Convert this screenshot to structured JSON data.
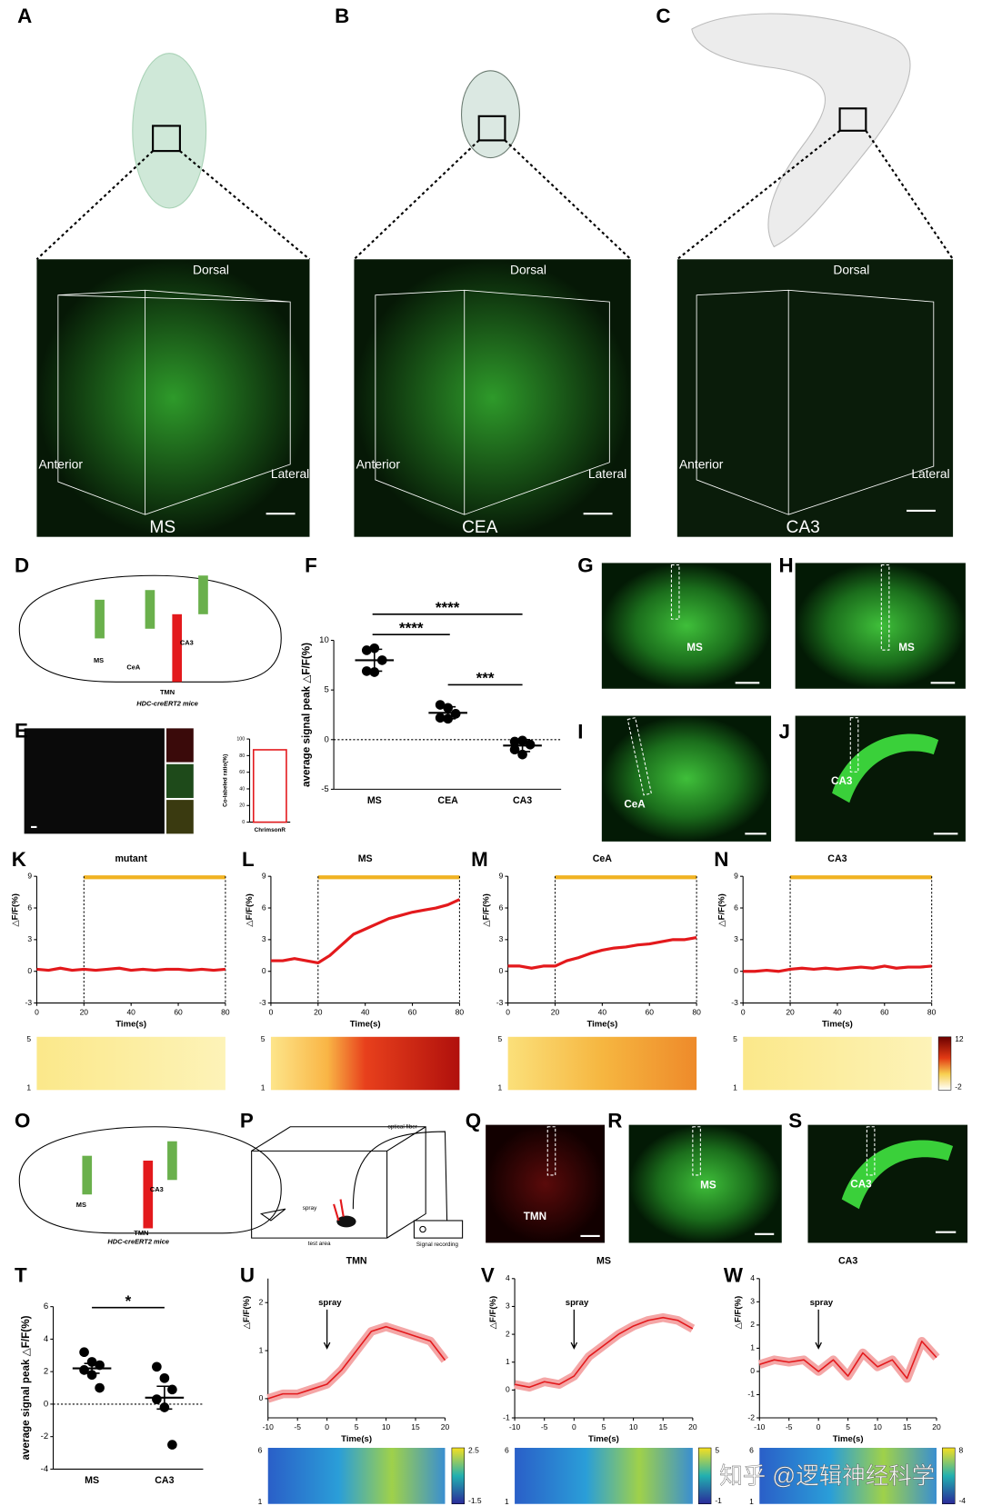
{
  "figure": {
    "panel_letters": [
      "A",
      "B",
      "C",
      "D",
      "E",
      "F",
      "G",
      "H",
      "I",
      "J",
      "K",
      "L",
      "M",
      "N",
      "O",
      "P",
      "Q",
      "R",
      "S",
      "T",
      "U",
      "V",
      "W"
    ],
    "cubes": [
      {
        "dorsal": "Dorsal",
        "anterior": "Anterior",
        "lateral": "Lateral",
        "region": "MS"
      },
      {
        "dorsal": "Dorsal",
        "anterior": "Anterior",
        "lateral": "Lateral",
        "region": "CEA"
      },
      {
        "dorsal": "Dorsal",
        "anterior": "Anterior",
        "lateral": "Lateral",
        "region": "CA3"
      }
    ],
    "d_labels": [
      "MS",
      "CeA",
      "CA3",
      "TMN",
      "HDC-creERT2 mice"
    ],
    "o_labels": [
      "MS",
      "CA3",
      "TMN",
      "HDC-creERT2 mice"
    ],
    "p_labels": [
      "optical fiber",
      "spray",
      "test area",
      "Signal recording"
    ],
    "image_labels": [
      "MS",
      "MS",
      "CeA",
      "CA3",
      "TMN",
      "MS",
      "CA3"
    ],
    "watermark": "知乎 @逻辑神经科学"
  },
  "chart_data": [
    {
      "type": "bar",
      "categories": [
        "ChrimsonR"
      ],
      "values": [
        87
      ],
      "color": "#e3191c",
      "ylim": [
        0,
        100
      ],
      "yticks": [
        0,
        20,
        40,
        60,
        80,
        100
      ],
      "ylabel": "Co-labeled ratio(%)"
    },
    {
      "type": "strip",
      "categories": [
        "MS",
        "CEA",
        "CA3"
      ],
      "points": [
        [
          9,
          9.2,
          8,
          6.9,
          6.8
        ],
        [
          3.5,
          3.2,
          2.6,
          2.2,
          2.1
        ],
        [
          -0.2,
          -0.1,
          -0.5,
          -1,
          -1.5
        ]
      ],
      "means": [
        8,
        2.7,
        -0.6
      ],
      "errors": [
        1.1,
        0.6,
        0.6
      ],
      "ylim": [
        -5,
        10
      ],
      "yticks": [
        -5,
        0,
        5,
        10
      ],
      "ylabel": "average signal peak △F/F(%)",
      "annotations": [
        "****",
        "****",
        "***"
      ]
    },
    {
      "type": "line",
      "title": "mutant",
      "x": [
        0,
        5,
        10,
        15,
        20,
        25,
        30,
        35,
        40,
        45,
        50,
        55,
        60,
        65,
        70,
        75,
        80
      ],
      "values": [
        0.2,
        0.1,
        0.3,
        0.1,
        0.2,
        0.1,
        0.2,
        0.3,
        0.1,
        0.2,
        0.1,
        0.2,
        0.2,
        0.1,
        0.2,
        0.1,
        0.2
      ],
      "color": "#e3191c",
      "stimulus": [
        20,
        80
      ],
      "xlim": [
        0,
        80
      ],
      "xticks": [
        0,
        20,
        40,
        60,
        80
      ],
      "ylim": [
        -3,
        9
      ],
      "yticks": [
        -3,
        0,
        3,
        6,
        9
      ],
      "xlabel": "Time(s)",
      "ylabel": "△F/F(%)",
      "heatmap_rows": [
        5,
        1
      ]
    },
    {
      "type": "line",
      "title": "MS",
      "x": [
        0,
        5,
        10,
        15,
        20,
        25,
        30,
        35,
        40,
        45,
        50,
        55,
        60,
        65,
        70,
        75,
        80
      ],
      "values": [
        1,
        1,
        1.2,
        1,
        0.8,
        1.5,
        2.5,
        3.5,
        4,
        4.5,
        5,
        5.3,
        5.6,
        5.8,
        6,
        6.3,
        6.8
      ],
      "color": "#e3191c",
      "stimulus": [
        20,
        80
      ],
      "xlim": [
        0,
        80
      ],
      "xticks": [
        0,
        20,
        40,
        60,
        80
      ],
      "ylim": [
        -3,
        9
      ],
      "yticks": [
        -3,
        0,
        3,
        6,
        9
      ],
      "xlabel": "Time(s)",
      "ylabel": "△F/F(%)",
      "heatmap_rows": [
        5,
        1
      ]
    },
    {
      "type": "line",
      "title": "CeA",
      "x": [
        0,
        5,
        10,
        15,
        20,
        25,
        30,
        35,
        40,
        45,
        50,
        55,
        60,
        65,
        70,
        75,
        80
      ],
      "values": [
        0.5,
        0.5,
        0.3,
        0.5,
        0.5,
        1,
        1.3,
        1.7,
        2,
        2.2,
        2.3,
        2.5,
        2.6,
        2.8,
        3,
        3,
        3.2
      ],
      "color": "#e3191c",
      "stimulus": [
        20,
        80
      ],
      "xlim": [
        0,
        80
      ],
      "xticks": [
        0,
        20,
        40,
        60,
        80
      ],
      "ylim": [
        -3,
        9
      ],
      "yticks": [
        -3,
        0,
        3,
        6,
        9
      ],
      "xlabel": "Time(s)",
      "ylabel": "△F/F(%)",
      "heatmap_rows": [
        5,
        1
      ]
    },
    {
      "type": "line",
      "title": "CA3",
      "x": [
        0,
        5,
        10,
        15,
        20,
        25,
        30,
        35,
        40,
        45,
        50,
        55,
        60,
        65,
        70,
        75,
        80
      ],
      "values": [
        0,
        0,
        0.1,
        0,
        0.2,
        0.3,
        0.2,
        0.3,
        0.2,
        0.3,
        0.4,
        0.3,
        0.5,
        0.3,
        0.4,
        0.4,
        0.5
      ],
      "color": "#e3191c",
      "stimulus": [
        20,
        80
      ],
      "xlim": [
        0,
        80
      ],
      "xticks": [
        0,
        20,
        40,
        60,
        80
      ],
      "ylim": [
        -3,
        9
      ],
      "yticks": [
        -3,
        0,
        3,
        6,
        9
      ],
      "xlabel": "Time(s)",
      "ylabel": "△F/F(%)",
      "heatmap_rows": [
        5,
        1
      ],
      "colorbar": [
        12,
        -2
      ]
    },
    {
      "type": "strip",
      "categories": [
        "MS",
        "CA3"
      ],
      "points": [
        [
          3.2,
          2.6,
          2.4,
          2.1,
          1.8,
          1
        ],
        [
          2.3,
          1.6,
          0.9,
          0.3,
          -0.2,
          -2.5
        ]
      ],
      "means": [
        2.2,
        0.4
      ],
      "errors": [
        0.3,
        0.7
      ],
      "ylim": [
        -4,
        6
      ],
      "yticks": [
        -4,
        -2,
        0,
        2,
        4,
        6
      ],
      "ylabel": "average signal peak △F/F(%)",
      "annotations": [
        "*"
      ]
    },
    {
      "type": "line",
      "title": "TMN",
      "annotation": "spray",
      "x": [
        -10,
        -7.5,
        -5,
        -2.5,
        0,
        2.5,
        5,
        7.5,
        10,
        12.5,
        15,
        17.5,
        20
      ],
      "values": [
        0,
        0.1,
        0.1,
        0.2,
        0.3,
        0.6,
        1,
        1.4,
        1.5,
        1.4,
        1.3,
        1.2,
        0.8
      ],
      "color": "#e3191c",
      "xlim": [
        -10,
        20
      ],
      "xticks": [
        -10,
        -5,
        0,
        5,
        10,
        15,
        20
      ],
      "ylim": [
        -0.4,
        2.5
      ],
      "yticks": [
        0,
        1,
        2
      ],
      "xlabel": "Time(s)",
      "ylabel": "△F/F(%)",
      "heatmap_rows": [
        6,
        1
      ],
      "colorbar": [
        2.5,
        -1.5
      ]
    },
    {
      "type": "line",
      "title": "MS",
      "annotation": "spray",
      "x": [
        -10,
        -7.5,
        -5,
        -2.5,
        0,
        2.5,
        5,
        7.5,
        10,
        12.5,
        15,
        17.5,
        20
      ],
      "values": [
        0.2,
        0.1,
        0.3,
        0.2,
        0.5,
        1.2,
        1.6,
        2,
        2.3,
        2.5,
        2.6,
        2.5,
        2.2
      ],
      "color": "#e3191c",
      "xlim": [
        -10,
        20
      ],
      "xticks": [
        -10,
        -5,
        0,
        5,
        10,
        15,
        20
      ],
      "ylim": [
        -1,
        4
      ],
      "yticks": [
        -1,
        0,
        1,
        2,
        3,
        4
      ],
      "xlabel": "Time(s)",
      "ylabel": "△F/F(%)",
      "heatmap_rows": [
        6,
        1
      ],
      "colorbar": [
        5,
        -1
      ]
    },
    {
      "type": "line",
      "title": "CA3",
      "annotation": "spray",
      "x": [
        -10,
        -7.5,
        -5,
        -2.5,
        0,
        2.5,
        5,
        7.5,
        10,
        12.5,
        15,
        17.5,
        20
      ],
      "values": [
        0.3,
        0.5,
        0.4,
        0.5,
        0,
        0.5,
        -0.2,
        0.8,
        0.2,
        0.5,
        -0.3,
        1.3,
        0.6
      ],
      "color": "#e3191c",
      "xlim": [
        -10,
        20
      ],
      "xticks": [
        -10,
        -5,
        0,
        5,
        10,
        15,
        20
      ],
      "ylim": [
        -2,
        4
      ],
      "yticks": [
        -2,
        -1,
        0,
        1,
        2,
        3,
        4
      ],
      "xlabel": "Time(s)",
      "ylabel": "△F/F(%)",
      "heatmap_rows": [
        6,
        1
      ],
      "colorbar": [
        8,
        -4
      ]
    }
  ]
}
